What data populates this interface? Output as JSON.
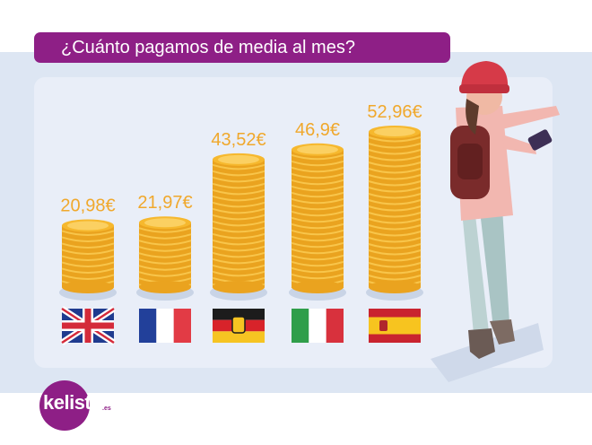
{
  "title": "¿Cuánto pagamos de media al mes?",
  "logo": {
    "text": "kelisto",
    "suffix": ".es"
  },
  "colors": {
    "brand": "#8e1f86",
    "value_label": "#f0a82c",
    "coin": "#f6b82e",
    "background": "#dde6f3"
  },
  "chart_data": {
    "type": "bar",
    "categories": [
      "flag-uk",
      "flag-france",
      "flag-germany",
      "flag-italy",
      "flag-spain"
    ],
    "values": [
      20.98,
      21.97,
      43.52,
      46.9,
      52.96
    ],
    "value_labels": [
      "20,98€",
      "21,97€",
      "43,52€",
      "46,9€",
      "52,96€"
    ],
    "title": "¿Cuánto pagamos de media al mes?",
    "xlabel": "",
    "ylabel": "",
    "ylim": [
      0,
      60
    ],
    "grid": false,
    "legend": "none"
  }
}
